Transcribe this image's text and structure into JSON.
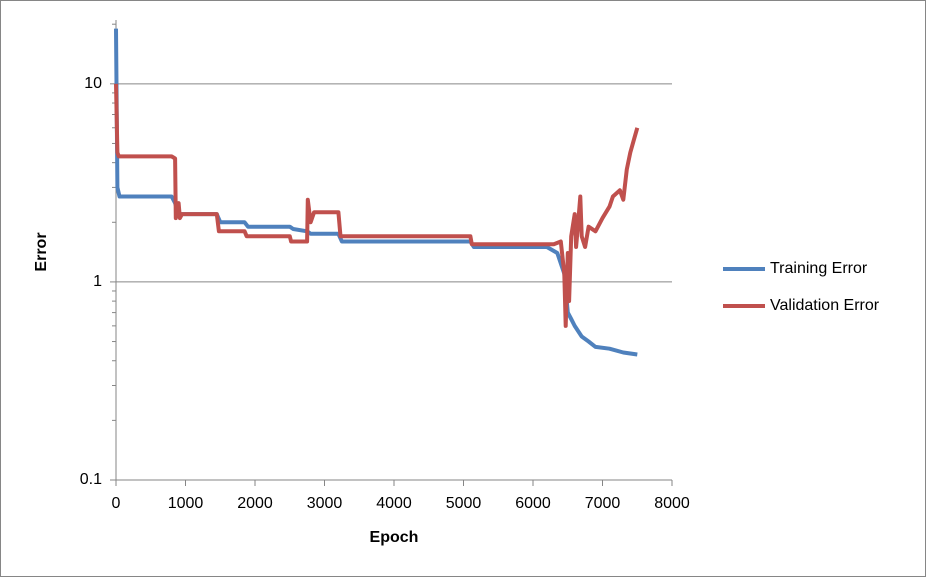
{
  "chart_data": {
    "type": "line",
    "x_label": "Epoch",
    "y_label": "Error",
    "xlim": [
      0,
      8000
    ],
    "xticks": [
      0,
      1000,
      2000,
      3000,
      4000,
      5000,
      6000,
      7000,
      8000
    ],
    "ylim": [
      0.1,
      21
    ],
    "yticks": [
      0.1,
      1,
      10
    ],
    "log_y": true,
    "grid": true,
    "legend": "right",
    "series": [
      {
        "name": "Training Error",
        "color": "#4f81bd",
        "x": [
          0,
          20,
          50,
          800,
          850,
          900,
          1450,
          1500,
          1850,
          1900,
          2500,
          2550,
          2750,
          2800,
          3200,
          3250,
          5100,
          5150,
          6200,
          6350,
          6450,
          6500,
          6550,
          6600,
          6700,
          6800,
          6900,
          7100,
          7300,
          7500
        ],
        "values": [
          19,
          3,
          2.7,
          2.7,
          2.5,
          2.2,
          2.2,
          2.0,
          2.0,
          1.9,
          1.9,
          1.85,
          1.8,
          1.75,
          1.75,
          1.6,
          1.6,
          1.5,
          1.5,
          1.4,
          1.1,
          0.7,
          0.65,
          0.6,
          0.53,
          0.5,
          0.47,
          0.46,
          0.44,
          0.43
        ]
      },
      {
        "name": "Validation Error",
        "color": "#c0504d",
        "x": [
          0,
          20,
          40,
          800,
          850,
          860,
          900,
          920,
          950,
          1450,
          1480,
          1850,
          1880,
          2500,
          2520,
          2750,
          2760,
          2800,
          2850,
          3200,
          3230,
          5100,
          5120,
          6300,
          6400,
          6450,
          6470,
          6500,
          6520,
          6550,
          6600,
          6620,
          6650,
          6680,
          6700,
          6750,
          6800,
          6900,
          7000,
          7100,
          7150,
          7250,
          7300,
          7350,
          7400,
          7450,
          7500
        ],
        "values": [
          10,
          4.5,
          4.3,
          4.3,
          4.2,
          2.1,
          2.5,
          2.1,
          2.2,
          2.2,
          1.8,
          1.8,
          1.7,
          1.7,
          1.6,
          1.6,
          2.6,
          2.0,
          2.25,
          2.25,
          1.7,
          1.7,
          1.55,
          1.55,
          1.6,
          1.1,
          0.6,
          1.4,
          0.8,
          1.7,
          2.2,
          1.5,
          2.0,
          2.7,
          1.7,
          1.5,
          1.9,
          1.8,
          2.1,
          2.4,
          2.7,
          2.9,
          2.6,
          3.7,
          4.5,
          5.2,
          6
        ]
      }
    ]
  }
}
